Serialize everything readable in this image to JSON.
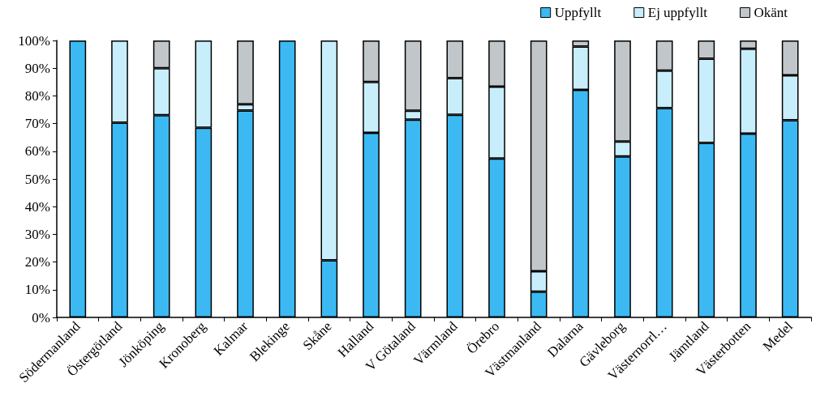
{
  "chart_data": {
    "type": "bar",
    "stacked": true,
    "legend": "top right",
    "grid": false,
    "categories": [
      "Södermanland",
      "Östergötland",
      "Jönköping",
      "Kronoberg",
      "Kalmar",
      "Blekinge",
      "Skåne",
      "Halland",
      "V Götaland",
      "Värmland",
      "Örebro",
      "Västmanland",
      "Dalarna",
      "Gävleborg",
      "Västernorrl…",
      "Jämtland",
      "Västerbotten",
      "Medel"
    ],
    "series": [
      {
        "name": "Uppfyllt",
        "color": "#3cb9f2",
        "values": [
          100,
          70.3,
          73,
          68.5,
          74.7,
          100,
          20.6,
          66.7,
          71.4,
          73.2,
          57.4,
          9.3,
          82.2,
          58.1,
          75.6,
          63,
          66.4,
          71.2
        ]
      },
      {
        "name": "Ej uppfyllt",
        "color": "#c8eefc",
        "values": [
          0,
          29.7,
          17,
          31.5,
          2.3,
          0,
          79.4,
          18.3,
          3.2,
          13.2,
          25.9,
          7.4,
          15.6,
          5.4,
          13.5,
          30.4,
          30.6,
          16.2
        ]
      },
      {
        "name": "Okänt",
        "color": "#c0c6c9",
        "values": [
          0,
          0,
          10,
          0,
          23,
          0,
          0,
          15,
          25.4,
          13.6,
          16.7,
          83.3,
          2.2,
          36.5,
          10.9,
          6.6,
          3,
          12.6
        ]
      }
    ],
    "ylim": [
      0,
      100
    ],
    "yticks": [
      {
        "value": 0,
        "label": "0%"
      },
      {
        "value": 10,
        "label": "10%"
      },
      {
        "value": 20,
        "label": "20%"
      },
      {
        "value": 30,
        "label": "30%"
      },
      {
        "value": 40,
        "label": "40%"
      },
      {
        "value": 50,
        "label": "50%"
      },
      {
        "value": 60,
        "label": "60%"
      },
      {
        "value": 70,
        "label": "70%"
      },
      {
        "value": 80,
        "label": "80%"
      },
      {
        "value": 90,
        "label": "90%"
      },
      {
        "value": 100,
        "label": "100%"
      }
    ]
  }
}
